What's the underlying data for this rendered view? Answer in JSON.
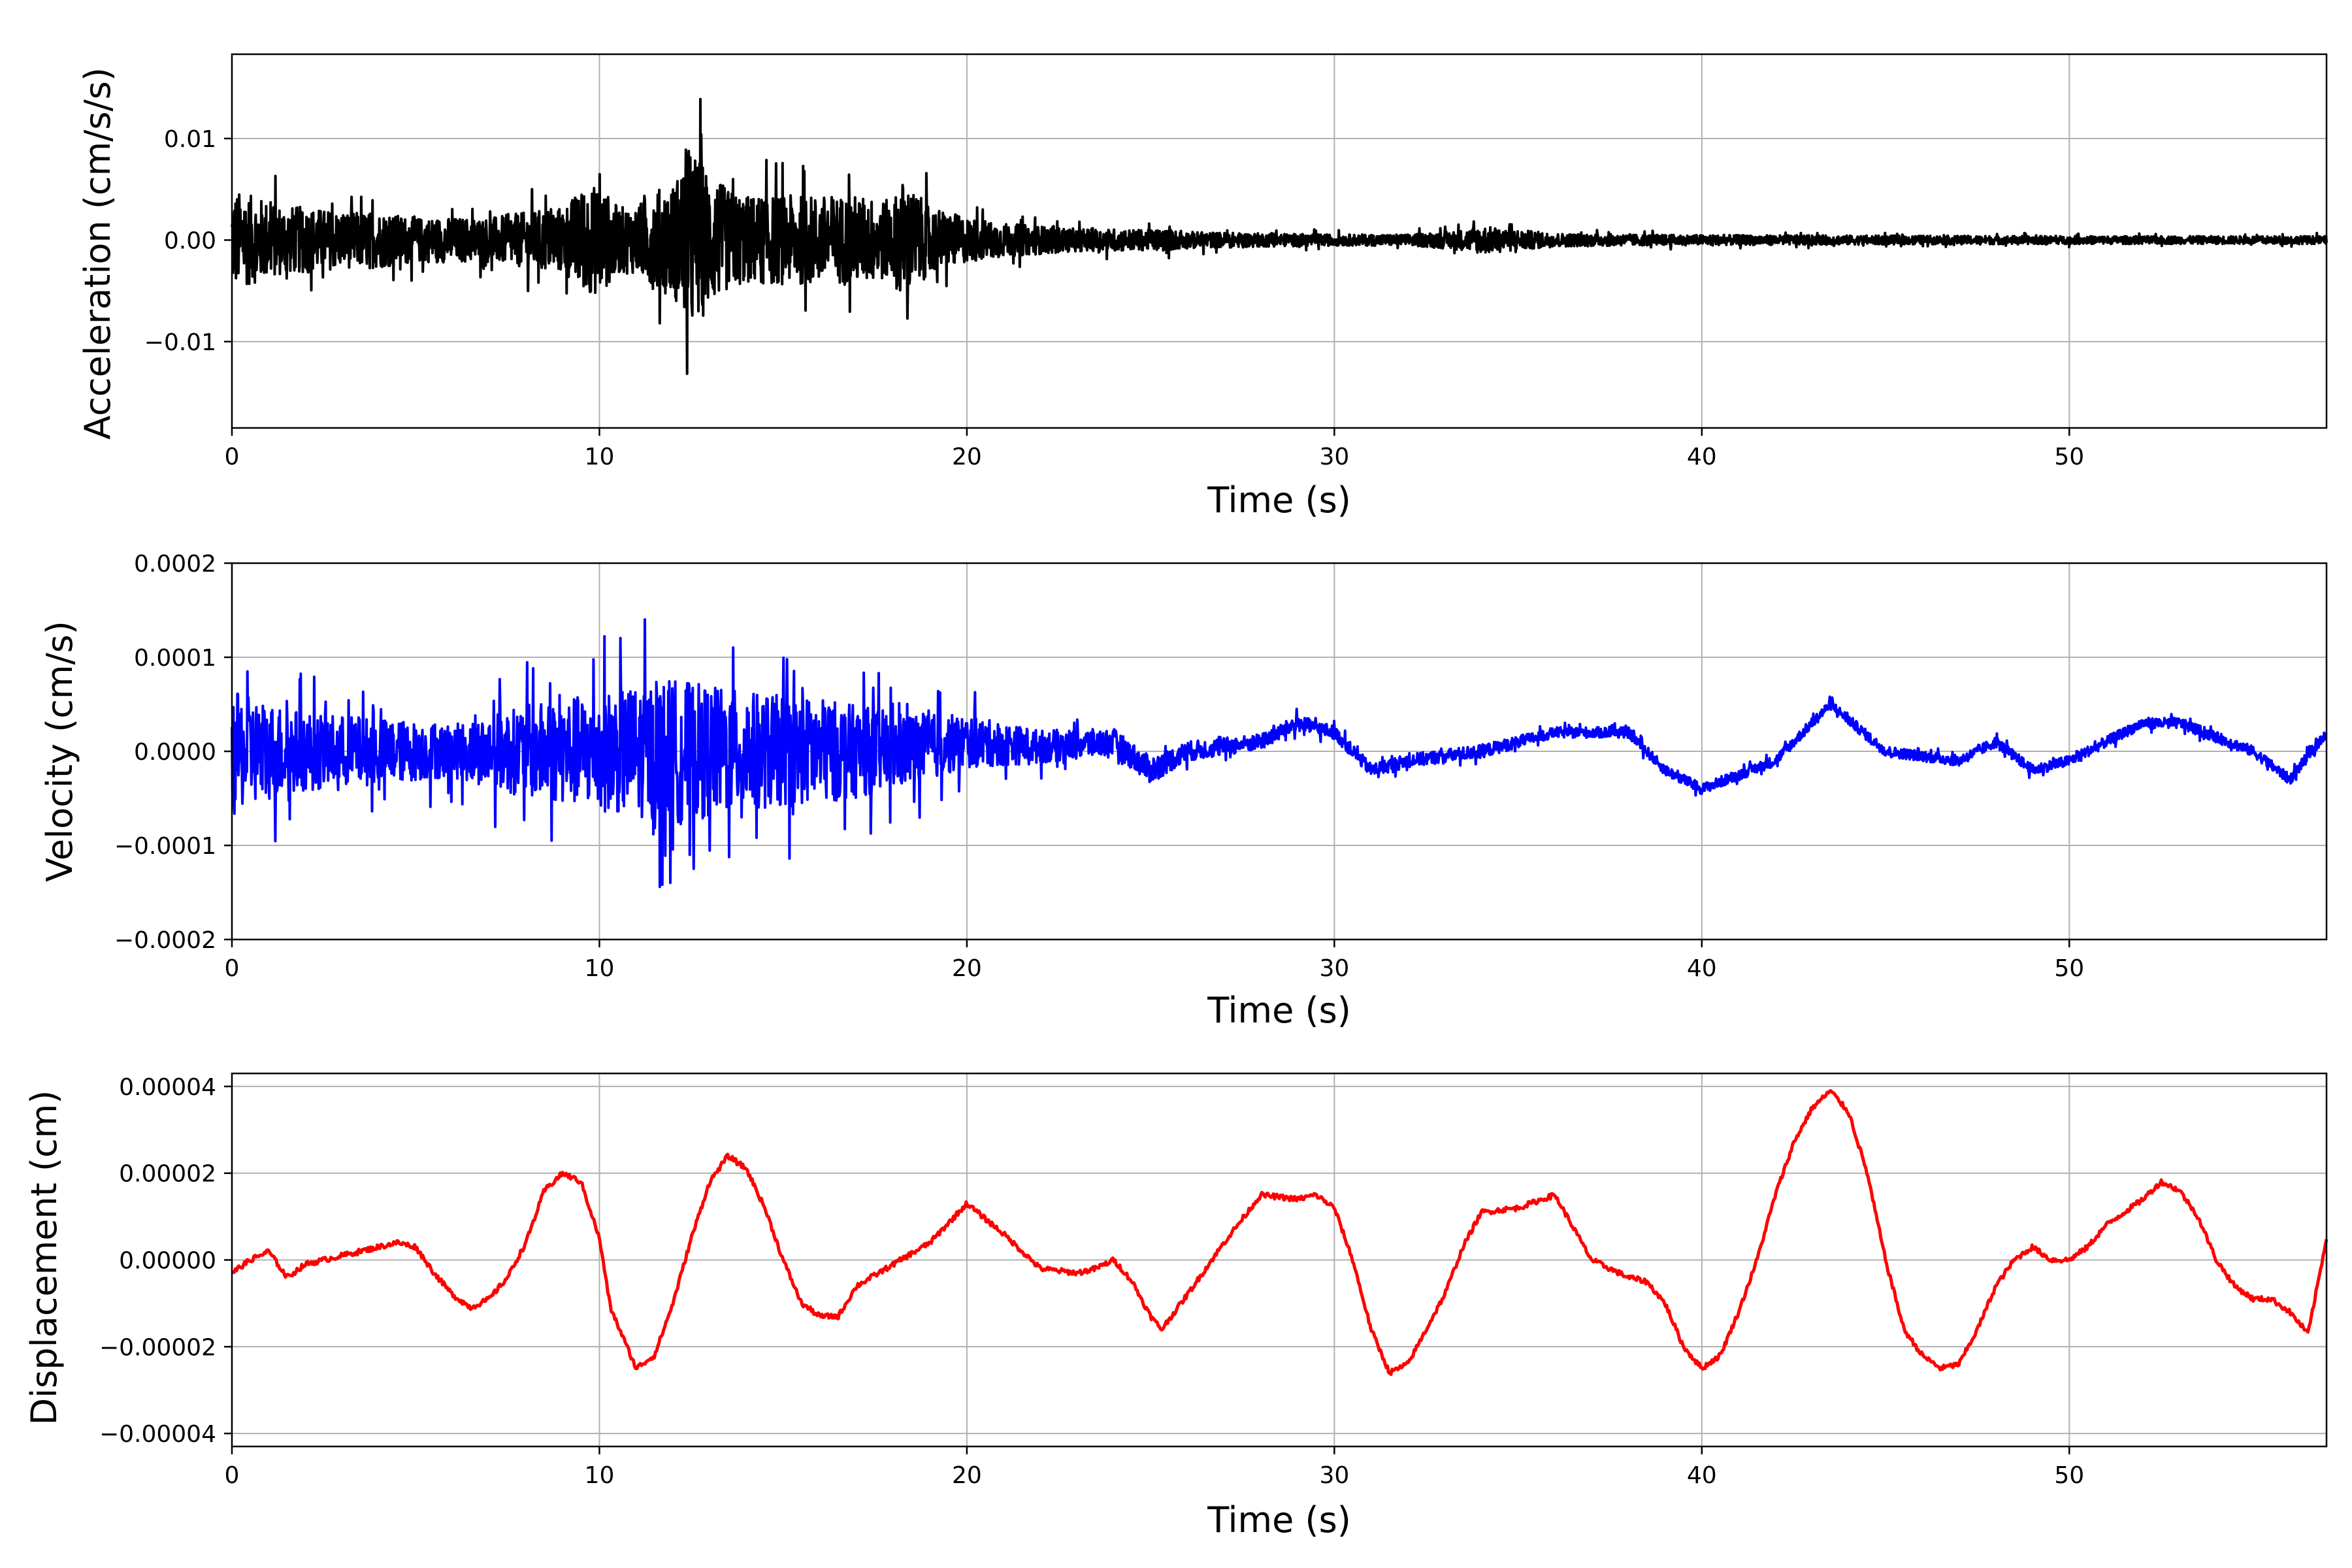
{
  "chart_data": [
    {
      "type": "line",
      "ylabel": "Acceleration (cm/s/s)",
      "xlabel": "Time (s)",
      "xlim": [
        0,
        57
      ],
      "ylim": [
        -0.0185,
        0.0183
      ],
      "x_ticks": [
        0,
        10,
        20,
        30,
        40,
        50
      ],
      "x_tick_labels": [
        "0",
        "10",
        "20",
        "30",
        "40",
        "50"
      ],
      "y_ticks": [
        -0.01,
        0.0,
        0.01
      ],
      "y_tick_labels": [
        "−0.01",
        "0.00",
        "0.01"
      ],
      "grid": true,
      "series": [
        {
          "color": "#000000",
          "style": "dense noisy trace",
          "x": [
            0,
            0.5,
            1,
            1.5,
            2,
            3,
            4,
            5,
            6,
            7,
            8,
            9,
            9.5,
            10,
            10.5,
            11,
            11.5,
            12,
            12.3,
            12.5,
            12.7,
            13,
            13.5,
            14,
            15,
            16,
            17,
            18,
            18.2,
            19,
            20,
            21,
            22,
            23,
            24,
            25,
            25.3,
            26,
            28,
            30,
            32,
            33.5,
            34,
            36,
            38,
            40,
            45,
            50,
            55,
            57
          ],
          "envelope": [
            0.009,
            0.008,
            0.007,
            0.006,
            0.006,
            0.005,
            0.005,
            0.004,
            0.004,
            0.004,
            0.005,
            0.006,
            0.009,
            0.01,
            0.006,
            0.006,
            0.009,
            0.01,
            0.014,
            0.0165,
            0.015,
            0.012,
            0.009,
            0.008,
            0.008,
            0.008,
            0.008,
            0.007,
            0.011,
            0.006,
            0.004,
            0.003,
            0.0025,
            0.002,
            0.002,
            0.0018,
            0.002,
            0.0015,
            0.0012,
            0.001,
            0.001,
            0.0018,
            0.0025,
            0.0012,
            0.001,
            0.0009,
            0.0008,
            0.0007,
            0.0007,
            0.0007
          ]
        }
      ]
    },
    {
      "type": "line",
      "ylabel": "Velocity (cm/s)",
      "xlabel": "Time (s)",
      "xlim": [
        0,
        57
      ],
      "ylim": [
        -0.0002,
        0.0002
      ],
      "x_ticks": [
        0,
        10,
        20,
        30,
        40,
        50
      ],
      "x_tick_labels": [
        "0",
        "10",
        "20",
        "30",
        "40",
        "50"
      ],
      "y_ticks": [
        -0.0002,
        -0.0001,
        0.0,
        0.0001,
        0.0002
      ],
      "y_tick_labels": [
        "−0.0002",
        "−0.0001",
        "0.0000",
        "0.0001",
        "0.0002"
      ],
      "grid": true,
      "series": [
        {
          "color": "#0000ff",
          "style": "noisy trace around smooth baseline",
          "x": [
            0,
            2,
            4,
            6,
            8,
            10,
            12,
            14,
            16,
            18,
            20,
            22,
            24,
            25,
            26,
            28,
            29,
            30,
            31,
            32,
            34,
            36,
            38,
            39,
            40,
            42,
            43.5,
            45,
            47,
            48,
            49,
            50,
            52,
            53,
            55,
            56,
            57
          ],
          "baseline": [
            0.0,
            0.0,
            0.0,
            0.0,
            0.0,
            0.0,
            0.0,
            0.0,
            0.0,
            0.0,
            1e-05,
            5e-06,
            1e-05,
            -2e-05,
            0.0,
            1e-05,
            3e-05,
            2e-05,
            -2e-05,
            -1e-05,
            0.0,
            2e-05,
            2e-05,
            -2e-05,
            -4e-05,
            -1e-05,
            5e-05,
            0.0,
            -1e-05,
            1e-05,
            -2e-05,
            -1e-05,
            3e-05,
            3e-05,
            0.0,
            -3e-05,
            2e-05
          ],
          "envelope": [
            9e-05,
            6e-05,
            5e-05,
            4e-05,
            7e-05,
            9e-05,
            0.00011,
            9e-05,
            8e-05,
            6e-05,
            4e-05,
            2.5e-05,
            2e-05,
            2e-05,
            1.5e-05,
            1.2e-05,
            1.2e-05,
            1e-05,
            1e-05,
            1e-05,
            1e-05,
            8e-06,
            8e-06,
            8e-06,
            8e-06,
            8e-06,
            8e-06,
            8e-06,
            8e-06,
            8e-06,
            8e-06,
            8e-06,
            8e-06,
            8e-06,
            8e-06,
            8e-06,
            8e-06
          ]
        }
      ]
    },
    {
      "type": "line",
      "ylabel": "Displacement (cm)",
      "xlabel": "Time (s)",
      "xlim": [
        0,
        57
      ],
      "ylim": [
        -4.3e-05,
        4.3e-05
      ],
      "x_ticks": [
        0,
        10,
        20,
        30,
        40,
        50
      ],
      "x_tick_labels": [
        "0",
        "10",
        "20",
        "30",
        "40",
        "50"
      ],
      "y_ticks": [
        -4e-05,
        -2e-05,
        0.0,
        2e-05,
        4e-05
      ],
      "y_tick_labels": [
        "−0.00004",
        "−0.00002",
        "0.00000",
        "0.00002",
        "0.00004"
      ],
      "grid": true,
      "series": [
        {
          "color": "#ff0000",
          "x": [
            0,
            0.5,
            1,
            1.5,
            2,
            3,
            4,
            4.5,
            5,
            5.5,
            6,
            6.5,
            7,
            7.5,
            8,
            8.5,
            9,
            9.5,
            10,
            10.3,
            11,
            11.5,
            12,
            12.5,
            13,
            13.5,
            14,
            14.5,
            15,
            15.5,
            16,
            16.5,
            17,
            18,
            19,
            20,
            21,
            22,
            23,
            23.5,
            24,
            24.5,
            25,
            25.3,
            26,
            27,
            28,
            29,
            29.5,
            30,
            30.5,
            31,
            31.5,
            32,
            32.5,
            33,
            33.5,
            34,
            35,
            36,
            37,
            38,
            38.5,
            39,
            39.5,
            40,
            40.5,
            41,
            41.5,
            42,
            42.5,
            43,
            43.5,
            44,
            44.5,
            45,
            45.5,
            46,
            46.5,
            47,
            47.5,
            48,
            48.5,
            49,
            49.5,
            50,
            50.5,
            51,
            52,
            52.5,
            53,
            53.5,
            54,
            54.5,
            55,
            55.5,
            56,
            56.5,
            57
          ],
          "y": [
            -3e-06,
            0.0,
            2e-06,
            -4e-06,
            -1e-06,
            1e-06,
            3e-06,
            4e-06,
            3e-06,
            -3e-06,
            -8e-06,
            -1.1e-05,
            -9e-06,
            -4e-06,
            4e-06,
            1.6e-05,
            2e-05,
            1.8e-05,
            5e-06,
            -1.1e-05,
            -2.5e-05,
            -2.2e-05,
            -1e-05,
            5e-06,
            1.8e-05,
            2.4e-05,
            2.1e-05,
            1.2e-05,
            0.0,
            -1e-05,
            -1.3e-05,
            -1.3e-05,
            -6e-06,
            -1e-06,
            4e-06,
            1.3e-05,
            6e-06,
            -2e-06,
            -3e-06,
            -2e-06,
            0.0,
            -5e-06,
            -1.3e-05,
            -1.6e-05,
            -8e-06,
            4e-06,
            1.5e-05,
            1.4e-05,
            1.5e-05,
            1.2e-05,
            0.0,
            -1.6e-05,
            -2.6e-05,
            -2.4e-05,
            -1.6e-05,
            -8e-06,
            3e-06,
            1.1e-05,
            1.2e-05,
            1.5e-05,
            0.0,
            -4e-06,
            -5e-06,
            -1e-05,
            -2e-05,
            -2.5e-05,
            -2.2e-05,
            -1.2e-05,
            0.0,
            1.5e-05,
            2.7e-05,
            3.5e-05,
            3.9e-05,
            3.4e-05,
            2e-05,
            0.0,
            -1.6e-05,
            -2.2e-05,
            -2.5e-05,
            -2.4e-05,
            -1.6e-05,
            -6e-06,
            0.0,
            3e-06,
            0.0,
            0.0,
            3e-06,
            8e-06,
            1.4e-05,
            1.8e-05,
            1.6e-05,
            1e-05,
            0.0,
            -6e-06,
            -9e-06,
            -9e-06,
            -1.2e-05,
            -1.7e-05,
            5e-06
          ]
        }
      ]
    }
  ]
}
